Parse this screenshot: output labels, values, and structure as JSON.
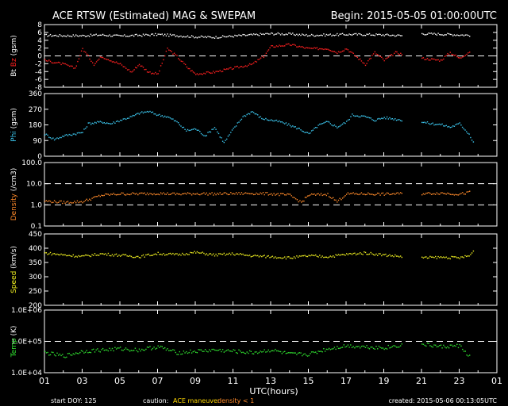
{
  "header": {
    "title": "ACE RTSW (Estimated) MAG & SWEPAM",
    "begin": "Begin: 2015-05-05 01:00:00UTC"
  },
  "footer": {
    "start_doy": "start DOY: 125",
    "caution_label": "caution:",
    "caution_maneuver": "ACE maneuver",
    "caution_density": "density < 1",
    "created": "created: 2015-05-06 00:13:05UTC"
  },
  "colors": {
    "bt": "#ffffff",
    "bz": "#ff2020",
    "phi": "#3cc8f0",
    "density": "#ff8a2a",
    "speed": "#f0f020",
    "temp": "#30e030",
    "caution_maneuver": "#ffd700",
    "caution_density": "#ff8a2a"
  },
  "chart_data": [
    {
      "type": "scatter",
      "ylabel_parts": [
        "Bt",
        "Bz",
        "(gsm)"
      ],
      "ylim": [
        -8,
        8
      ],
      "yticks": [
        -8,
        -6,
        -4,
        -2,
        0,
        2,
        4,
        6,
        8
      ],
      "dashed": [
        0
      ],
      "series": [
        {
          "name": "Bt",
          "color": "#ffffff",
          "points": [
            [
              1,
              5.4
            ],
            [
              2,
              5.3
            ],
            [
              3,
              5.3
            ],
            [
              4,
              5.5
            ],
            [
              5,
              5.2
            ],
            [
              6,
              5.4
            ],
            [
              7,
              5.6
            ],
            [
              8,
              5.3
            ],
            [
              9,
              5.0
            ],
            [
              10,
              4.9
            ],
            [
              11,
              5.2
            ],
            [
              12,
              5.5
            ],
            [
              13,
              5.8
            ],
            [
              14,
              5.7
            ],
            [
              15,
              5.4
            ],
            [
              16,
              5.5
            ],
            [
              17,
              5.6
            ],
            [
              18,
              5.6
            ],
            [
              19,
              5.5
            ],
            [
              20,
              5.3
            ],
            [
              20.6,
              null
            ],
            [
              21,
              5.8
            ],
            [
              22,
              5.7
            ],
            [
              23,
              5.5
            ],
            [
              23.6,
              5.4
            ]
          ]
        },
        {
          "name": "Bz",
          "color": "#ff2020",
          "points": [
            [
              1,
              -1
            ],
            [
              2,
              -2
            ],
            [
              2.6,
              -3
            ],
            [
              3,
              2
            ],
            [
              3.6,
              -2
            ],
            [
              4,
              0
            ],
            [
              5,
              -2
            ],
            [
              5.6,
              -4
            ],
            [
              6,
              -2
            ],
            [
              6.5,
              -4
            ],
            [
              7,
              -4.5
            ],
            [
              7.5,
              2
            ],
            [
              8,
              0
            ],
            [
              8.6,
              -3
            ],
            [
              9,
              -4.5
            ],
            [
              10,
              -4
            ],
            [
              11,
              -3
            ],
            [
              12,
              -2
            ],
            [
              12.6,
              0
            ],
            [
              13,
              2.5
            ],
            [
              14,
              3
            ],
            [
              15,
              2
            ],
            [
              16,
              2
            ],
            [
              16.5,
              1
            ],
            [
              17,
              2
            ],
            [
              18,
              -2
            ],
            [
              18.5,
              1
            ],
            [
              19,
              -1
            ],
            [
              19.6,
              1
            ],
            [
              20,
              0.5
            ],
            [
              20.6,
              null
            ],
            [
              21,
              -0.5
            ],
            [
              22,
              -1
            ],
            [
              22.5,
              1
            ],
            [
              23,
              -0.5
            ],
            [
              23.6,
              1.5
            ]
          ]
        }
      ]
    },
    {
      "type": "scatter",
      "ylabel_parts": [
        "Phi",
        "(gsm)"
      ],
      "ylim": [
        0,
        360
      ],
      "yticks": [
        0,
        90,
        180,
        270,
        360
      ],
      "series": [
        {
          "name": "Phi",
          "color": "#3cc8f0",
          "points": [
            [
              1,
              130
            ],
            [
              1.5,
              100
            ],
            [
              2,
              120
            ],
            [
              3,
              140
            ],
            [
              3.3,
              190
            ],
            [
              4,
              200
            ],
            [
              4.5,
              190
            ],
            [
              5,
              210
            ],
            [
              5.6,
              230
            ],
            [
              6,
              250
            ],
            [
              6.5,
              260
            ],
            [
              7,
              240
            ],
            [
              7.5,
              230
            ],
            [
              8,
              200
            ],
            [
              8.5,
              150
            ],
            [
              9,
              160
            ],
            [
              9.5,
              120
            ],
            [
              10,
              170
            ],
            [
              10.5,
              80
            ],
            [
              11,
              160
            ],
            [
              11.5,
              230
            ],
            [
              12,
              260
            ],
            [
              12.5,
              220
            ],
            [
              13,
              210
            ],
            [
              13.5,
              200
            ],
            [
              14,
              180
            ],
            [
              14.5,
              160
            ],
            [
              15,
              130
            ],
            [
              15.5,
              180
            ],
            [
              16,
              200
            ],
            [
              16.5,
              170
            ],
            [
              17,
              200
            ],
            [
              17.3,
              240
            ],
            [
              18,
              230
            ],
            [
              18.5,
              210
            ],
            [
              19,
              225
            ],
            [
              20,
              210
            ],
            [
              20.6,
              null
            ],
            [
              21,
              200
            ],
            [
              21.5,
              190
            ],
            [
              22,
              185
            ],
            [
              22.5,
              170
            ],
            [
              23,
              190
            ],
            [
              23.5,
              130
            ],
            [
              23.8,
              70
            ]
          ]
        }
      ]
    },
    {
      "type": "scatter",
      "scale": "log",
      "ylabel_parts": [
        "Density",
        "(/cm3)"
      ],
      "ylim": [
        0.1,
        100
      ],
      "yticks": [
        0.1,
        1.0,
        10.0,
        100.0
      ],
      "ytick_labels": [
        "0.1",
        "1.0",
        "10.0",
        "100.0"
      ],
      "dashed": [
        1,
        10
      ],
      "series": [
        {
          "name": "Density",
          "color": "#ff8a2a",
          "points": [
            [
              1,
              1.6
            ],
            [
              2,
              1.4
            ],
            [
              3,
              1.5
            ],
            [
              4,
              3
            ],
            [
              5,
              3.5
            ],
            [
              6,
              3.5
            ],
            [
              7,
              3.7
            ],
            [
              8,
              3.4
            ],
            [
              9,
              3.6
            ],
            [
              10,
              3.5
            ],
            [
              11,
              3.6
            ],
            [
              12,
              3.7
            ],
            [
              13,
              3.5
            ],
            [
              14,
              3
            ],
            [
              14.6,
              1.4
            ],
            [
              15,
              3.1
            ],
            [
              16,
              3.3
            ],
            [
              16.5,
              1.5
            ],
            [
              17,
              3.5
            ],
            [
              18,
              3.5
            ],
            [
              19,
              3.4
            ],
            [
              20,
              3.6
            ],
            [
              20.6,
              null
            ],
            [
              21,
              3.6
            ],
            [
              22,
              3.8
            ],
            [
              23,
              3.4
            ],
            [
              23.6,
              4.2
            ]
          ]
        }
      ]
    },
    {
      "type": "scatter",
      "ylabel_parts": [
        "Speed",
        "(km/s)"
      ],
      "ylim": [
        200,
        450
      ],
      "yticks": [
        200,
        250,
        300,
        350,
        400,
        450
      ],
      "series": [
        {
          "name": "Speed",
          "color": "#f0f020",
          "points": [
            [
              1,
              385
            ],
            [
              2,
              378
            ],
            [
              3,
              373
            ],
            [
              4,
              382
            ],
            [
              5,
              377
            ],
            [
              6,
              372
            ],
            [
              7,
              383
            ],
            [
              8,
              379
            ],
            [
              9,
              387
            ],
            [
              10,
              378
            ],
            [
              11,
              382
            ],
            [
              12,
              375
            ],
            [
              13,
              372
            ],
            [
              14,
              368
            ],
            [
              15,
              375
            ],
            [
              16,
              372
            ],
            [
              17,
              380
            ],
            [
              18,
              385
            ],
            [
              19,
              378
            ],
            [
              20,
              372
            ],
            [
              20.6,
              null
            ],
            [
              21,
              368
            ],
            [
              22,
              370
            ],
            [
              23,
              368
            ],
            [
              23.5,
              375
            ],
            [
              23.8,
              395
            ]
          ]
        }
      ]
    },
    {
      "type": "scatter",
      "scale": "log",
      "ylabel_parts": [
        "Temp",
        "(K)"
      ],
      "ylim": [
        10000,
        1000000
      ],
      "yticks": [
        10000,
        100000,
        1000000
      ],
      "ytick_labels": [
        "1.0E+04",
        "1.0E+05",
        "1.0E+06"
      ],
      "dashed": [
        100000
      ],
      "series": [
        {
          "name": "Temp",
          "color": "#30e030",
          "points": [
            [
              1,
              45000
            ],
            [
              2,
              35000
            ],
            [
              3,
              50000
            ],
            [
              4,
              55000
            ],
            [
              5,
              60000
            ],
            [
              6,
              55000
            ],
            [
              7,
              70000
            ],
            [
              8,
              45000
            ],
            [
              9,
              50000
            ],
            [
              10,
              55000
            ],
            [
              11,
              50000
            ],
            [
              12,
              45000
            ],
            [
              13,
              55000
            ],
            [
              14,
              40000
            ],
            [
              15,
              40000
            ],
            [
              16,
              60000
            ],
            [
              17,
              75000
            ],
            [
              18,
              70000
            ],
            [
              19,
              65000
            ],
            [
              20,
              80000
            ],
            [
              20.6,
              null
            ],
            [
              21,
              85000
            ],
            [
              22,
              70000
            ],
            [
              23,
              75000
            ],
            [
              23.6,
              30000
            ]
          ]
        }
      ]
    }
  ],
  "xaxis": {
    "label": "UTC(hours)",
    "ticks": [
      "01",
      "03",
      "05",
      "07",
      "09",
      "11",
      "13",
      "15",
      "17",
      "19",
      "21",
      "23",
      "01"
    ]
  }
}
